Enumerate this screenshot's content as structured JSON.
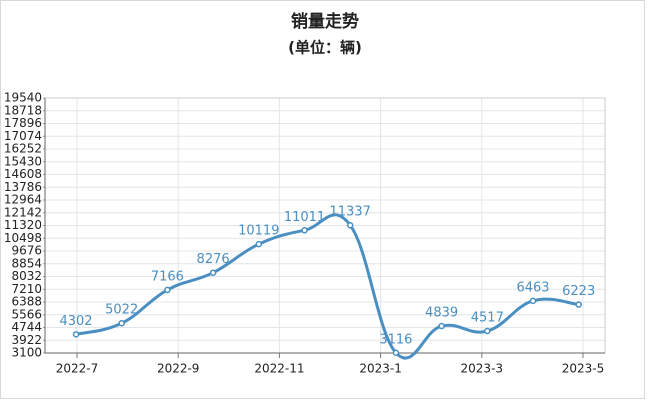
{
  "chart_data": {
    "type": "line",
    "title": "销量走势",
    "subtitle": "(单位：辆)",
    "xticks": [
      "2022-7",
      "2022-9",
      "2022-11",
      "2023-1",
      "2023-3",
      "2023-5"
    ],
    "series": [
      {
        "color": "#4a8fc1",
        "values": [
          4302,
          5022,
          7166,
          8276,
          10119,
          11011,
          11337,
          3116,
          4839,
          4517,
          6463,
          6223
        ]
      }
    ],
    "ylim": [
      3100,
      19540
    ],
    "yticks": [
      3100,
      3922,
      4744,
      5566,
      6388,
      7210,
      8032,
      8854,
      9676,
      10498,
      11320,
      12142,
      12964,
      13786,
      14608,
      15430,
      16252,
      17074,
      17896,
      18718,
      19540
    ],
    "grid": true
  }
}
